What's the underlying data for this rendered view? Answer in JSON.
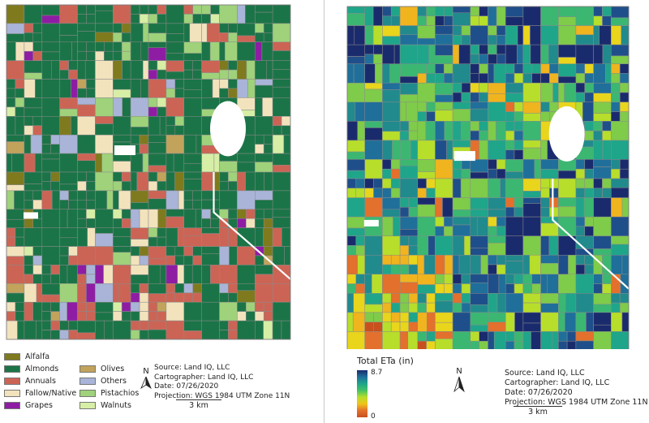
{
  "left_map": {
    "legend": [
      {
        "label": "Alfalfa",
        "color": "#7f7a1e"
      },
      {
        "label": "Almonds",
        "color": "#1b7447"
      },
      {
        "label": "Annuals",
        "color": "#cc6455"
      },
      {
        "label": "Fallow/Native",
        "color": "#f2e3bd"
      },
      {
        "label": "Grapes",
        "color": "#8e1da4"
      },
      {
        "label": "Olives",
        "color": "#c2a35c"
      },
      {
        "label": "Others",
        "color": "#a9b4d8"
      },
      {
        "label": "Pistachios",
        "color": "#9fd27a"
      },
      {
        "label": "Walnuts",
        "color": "#d7eea6"
      }
    ],
    "credits": {
      "source": "Source: Land IQ, LLC",
      "cartographer": "Cartographer: Land IQ, LLC",
      "date": "Date: 07/26/2020",
      "projection": "Projection: WGS 1984 UTM Zone 11N"
    },
    "north_label": "N",
    "scale_label": "3 km"
  },
  "right_map": {
    "colorbar": {
      "title": "Total ETa (in)",
      "max_label": "8.7",
      "min_label": "0",
      "min": 0,
      "max": 8.7
    },
    "credits": {
      "source": "Source: Land IQ, LLC",
      "cartographer": "Cartographer: Land IQ, LLC",
      "date": "Date: 07/26/2020",
      "projection": "Projection: WGS 1984 UTM Zone 11N"
    },
    "north_label": "N",
    "scale_label": "3 km"
  }
}
